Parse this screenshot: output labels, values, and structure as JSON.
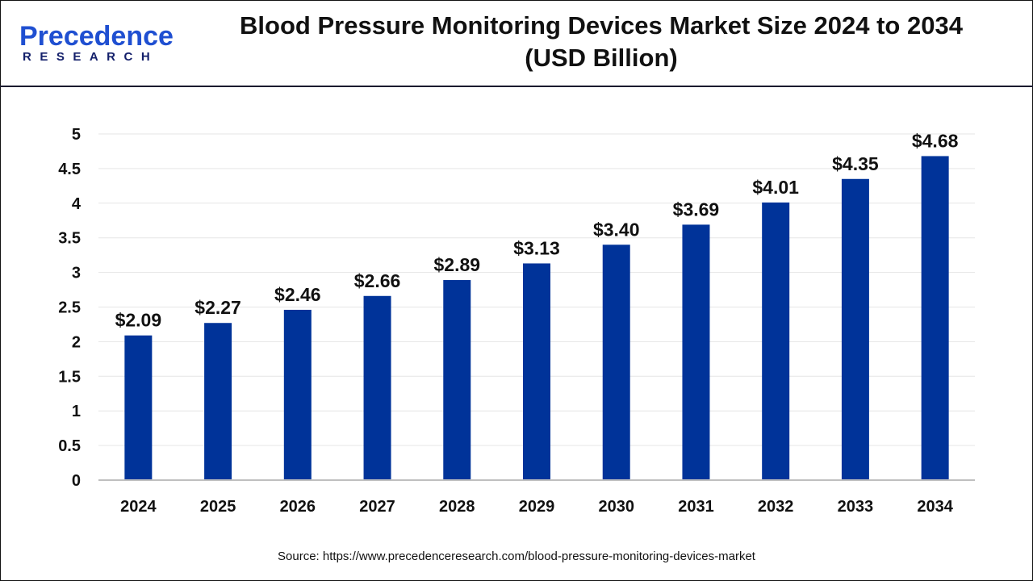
{
  "logo": {
    "main": "Precedence",
    "sub": "RESEARCH"
  },
  "title_line1": "Blood Pressure Monitoring Devices Market Size 2024 to 2034",
  "title_line2": "(USD Billion)",
  "source": "Source: https://www.precedenceresearch.com/blood-pressure-monitoring-devices-market",
  "colors": {
    "bar": "#003399",
    "grid": "#e6e6e6",
    "axis": "#bfbfbf"
  },
  "chart_data": {
    "type": "bar",
    "title": "Blood Pressure Monitoring Devices Market Size 2024 to 2034 (USD Billion)",
    "categories": [
      "2024",
      "2025",
      "2026",
      "2027",
      "2028",
      "2029",
      "2030",
      "2031",
      "2032",
      "2033",
      "2034"
    ],
    "values": [
      2.09,
      2.27,
      2.46,
      2.66,
      2.89,
      3.13,
      3.4,
      3.69,
      4.01,
      4.35,
      4.68
    ],
    "data_labels": [
      "$2.09",
      "$2.27",
      "$2.46",
      "$2.66",
      "$2.89",
      "$3.13",
      "$3.40",
      "$3.69",
      "$4.01",
      "$4.35",
      "$4.68"
    ],
    "yticks": [
      "0",
      "0.5",
      "1",
      "1.5",
      "2",
      "2.5",
      "3",
      "3.5",
      "4",
      "4.5",
      "5"
    ],
    "ylim": [
      0,
      5
    ],
    "grid": true,
    "xlabel": "",
    "ylabel": ""
  }
}
